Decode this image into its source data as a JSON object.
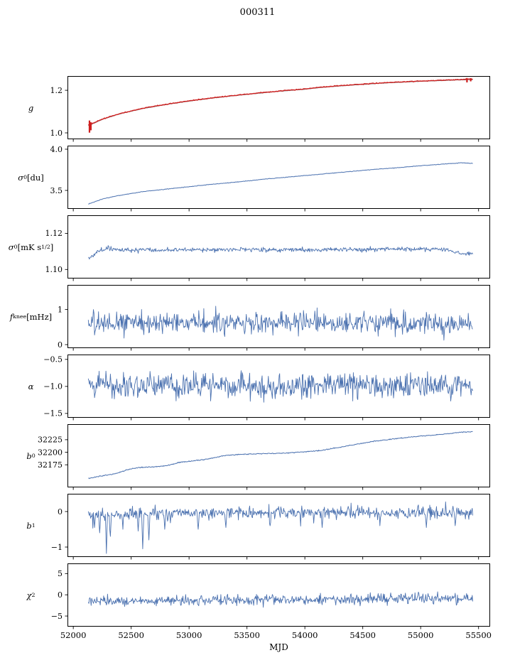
{
  "title": "000311",
  "colors": {
    "series_blue": "#4c72b0",
    "data_red": "#cf1f1f",
    "fit_gray": "#8a8a8a",
    "axis": "#000000",
    "background": "#ffffff"
  },
  "chart_data": {
    "type": "line",
    "title": "000311",
    "xlabel": "MJD",
    "legend": "none",
    "grid": false,
    "xlim": [
      51950,
      55600
    ],
    "xticks": [
      52000,
      52500,
      53000,
      53500,
      54000,
      54500,
      55000,
      55500
    ],
    "xtick_labels": [
      "52000",
      "52500",
      "53000",
      "53500",
      "54000",
      "54500",
      "55000",
      "55500"
    ],
    "data_xrange": [
      52130,
      55450
    ],
    "panels": [
      {
        "id": "g",
        "ylabel": "*g*",
        "ylim": [
          0.97,
          1.267
        ],
        "yticks": [
          1.0,
          1.2
        ],
        "ytick_labels": [
          "1.0",
          "1.2"
        ],
        "series": [
          {
            "name": "fit",
            "color": "#8a8a8a",
            "width": 1.1,
            "seed": 101,
            "points": 500,
            "noise": 0.0008,
            "anchors": [
              [
                52130,
                1.034
              ],
              [
                52250,
                1.063
              ],
              [
                52400,
                1.089
              ],
              [
                52600,
                1.114
              ],
              [
                52800,
                1.133
              ],
              [
                53000,
                1.149
              ],
              [
                53200,
                1.163
              ],
              [
                53400,
                1.175
              ],
              [
                53600,
                1.186
              ],
              [
                53800,
                1.196
              ],
              [
                54000,
                1.205
              ],
              [
                54200,
                1.216
              ],
              [
                54400,
                1.224
              ],
              [
                54600,
                1.231
              ],
              [
                54800,
                1.237
              ],
              [
                55000,
                1.242
              ],
              [
                55200,
                1.246
              ],
              [
                55350,
                1.249
              ],
              [
                55450,
                1.25
              ]
            ]
          },
          {
            "name": "data",
            "color": "#cf1f1f",
            "width": 1.4,
            "seed": 102,
            "points": 500,
            "noise": 0.0016,
            "yoffset": 0.0015,
            "anchors": [
              [
                52130,
                1.034
              ],
              [
                52250,
                1.063
              ],
              [
                52400,
                1.089
              ],
              [
                52600,
                1.114
              ],
              [
                52800,
                1.133
              ],
              [
                53000,
                1.149
              ],
              [
                53200,
                1.163
              ],
              [
                53400,
                1.175
              ],
              [
                53600,
                1.186
              ],
              [
                53800,
                1.196
              ],
              [
                54000,
                1.205
              ],
              [
                54200,
                1.216
              ],
              [
                54400,
                1.224
              ],
              [
                54600,
                1.231
              ],
              [
                54800,
                1.237
              ],
              [
                55000,
                1.242
              ],
              [
                55200,
                1.246
              ],
              [
                55350,
                1.249
              ],
              [
                55450,
                1.251
              ]
            ],
            "errorbars": [
              {
                "x": 52140,
                "ylo": 1.001,
                "yhi": 1.058
              },
              {
                "x": 52152,
                "ylo": 1.012,
                "yhi": 1.05
              },
              {
                "x": 55400,
                "ylo": 1.237,
                "yhi": 1.258
              },
              {
                "x": 55432,
                "ylo": 1.242,
                "yhi": 1.257
              }
            ]
          }
        ]
      },
      {
        "id": "sigma0-du",
        "ylabel": "*σ*_{0} [du]",
        "ylim": [
          3.276,
          4.043
        ],
        "yticks": [
          3.5,
          4.0
        ],
        "ytick_labels": [
          "3.5",
          "4.0"
        ],
        "series": [
          {
            "name": "sigma0_du",
            "color": "#4c72b0",
            "width": 1.0,
            "seed": 201,
            "points": 600,
            "noise": 0.003,
            "anchors": [
              [
                52130,
                3.335
              ],
              [
                52250,
                3.395
              ],
              [
                52400,
                3.44
              ],
              [
                52600,
                3.485
              ],
              [
                52800,
                3.515
              ],
              [
                53000,
                3.545
              ],
              [
                53200,
                3.575
              ],
              [
                53400,
                3.6
              ],
              [
                53600,
                3.63
              ],
              [
                53800,
                3.655
              ],
              [
                54000,
                3.68
              ],
              [
                54200,
                3.705
              ],
              [
                54400,
                3.73
              ],
              [
                54600,
                3.755
              ],
              [
                54800,
                3.775
              ],
              [
                55000,
                3.8
              ],
              [
                55200,
                3.82
              ],
              [
                55350,
                3.835
              ],
              [
                55450,
                3.828
              ]
            ]
          }
        ]
      },
      {
        "id": "sigma0-mks",
        "ylabel": "*σ*_{0} [mK s^{1/2}]",
        "ylim": [
          1.095,
          1.13
        ],
        "yticks": [
          1.1,
          1.12
        ],
        "ytick_labels": [
          "1.10",
          "1.12"
        ],
        "series": [
          {
            "name": "sigma0_mks",
            "color": "#4c72b0",
            "width": 0.9,
            "seed": 301,
            "points": 680,
            "noise": 0.001,
            "burst": {
              "prob": 0.05,
              "amp": 0.0015
            },
            "anchors": [
              [
                52130,
                1.1063
              ],
              [
                52170,
                1.1075
              ],
              [
                52210,
                1.1102
              ],
              [
                52260,
                1.111
              ],
              [
                52320,
                1.1118
              ],
              [
                52400,
                1.1108
              ],
              [
                52500,
                1.1105
              ],
              [
                52600,
                1.1112
              ],
              [
                52700,
                1.1105
              ],
              [
                52850,
                1.111
              ],
              [
                53000,
                1.1108
              ],
              [
                53150,
                1.1112
              ],
              [
                53300,
                1.1108
              ],
              [
                53500,
                1.111
              ],
              [
                53700,
                1.1107
              ],
              [
                53900,
                1.111
              ],
              [
                54100,
                1.1108
              ],
              [
                54300,
                1.1112
              ],
              [
                54500,
                1.111
              ],
              [
                54700,
                1.1113
              ],
              [
                54900,
                1.1115
              ],
              [
                55050,
                1.111
              ],
              [
                55200,
                1.1112
              ],
              [
                55300,
                1.1095
              ],
              [
                55380,
                1.1085
              ],
              [
                55450,
                1.109
              ]
            ]
          }
        ]
      },
      {
        "id": "fknee",
        "ylabel": "*f*_{knee} [mHz]",
        "ylim": [
          -0.1,
          1.7
        ],
        "yticks": [
          0,
          1
        ],
        "ytick_labels": [
          "0",
          "1"
        ],
        "series": [
          {
            "name": "fknee",
            "color": "#4c72b0",
            "width": 0.9,
            "seed": 401,
            "points": 680,
            "noise": 0.24,
            "burst": {
              "prob": 0.06,
              "amp": 0.35
            },
            "anchors": [
              [
                52130,
                0.6
              ],
              [
                53500,
                0.63
              ],
              [
                55450,
                0.62
              ]
            ]
          }
        ]
      },
      {
        "id": "alpha",
        "ylabel": "*α*",
        "ylim": [
          -1.58,
          -0.41
        ],
        "yticks": [
          -1.5,
          -1.0,
          -0.5
        ],
        "ytick_labels": [
          "−1.5",
          "−1.0",
          "−0.5"
        ],
        "series": [
          {
            "name": "alpha",
            "color": "#4c72b0",
            "width": 0.9,
            "seed": 501,
            "points": 680,
            "noise": 0.19,
            "burst": {
              "prob": 0.06,
              "amp": 0.25
            },
            "anchors": [
              [
                52130,
                -1.0
              ],
              [
                53500,
                -1.0
              ],
              [
                55450,
                -0.99
              ]
            ]
          }
        ]
      },
      {
        "id": "b0",
        "ylabel": "*b*_{0}",
        "ylim": [
          32130,
          32256
        ],
        "yticks": [
          32175,
          32200,
          32225
        ],
        "ytick_labels": [
          "32175",
          "32200",
          "32225"
        ],
        "series": [
          {
            "name": "b0",
            "color": "#4c72b0",
            "width": 1.0,
            "seed": 601,
            "points": 680,
            "noise": 0.8,
            "anchors": [
              [
                52130,
                32148
              ],
              [
                52250,
                32153
              ],
              [
                52380,
                32158
              ],
              [
                52450,
                32164
              ],
              [
                52550,
                32169
              ],
              [
                52700,
                32171
              ],
              [
                52800,
                32173
              ],
              [
                52900,
                32179
              ],
              [
                53000,
                32182
              ],
              [
                53150,
                32186
              ],
              [
                53300,
                32193
              ],
              [
                53450,
                32196
              ],
              [
                53600,
                32197
              ],
              [
                53800,
                32198
              ],
              [
                54000,
                32201
              ],
              [
                54150,
                32204
              ],
              [
                54300,
                32210
              ],
              [
                54450,
                32216
              ],
              [
                54600,
                32222
              ],
              [
                54750,
                32226
              ],
              [
                54900,
                32230
              ],
              [
                55050,
                32233
              ],
              [
                55200,
                32236
              ],
              [
                55350,
                32240
              ],
              [
                55450,
                32241
              ]
            ]
          }
        ]
      },
      {
        "id": "b1",
        "ylabel": "*b*_{1}",
        "ylim": [
          -1.28,
          0.5
        ],
        "yticks": [
          -1,
          0
        ],
        "ytick_labels": [
          "−1",
          "0"
        ],
        "series": [
          {
            "name": "b1",
            "color": "#4c72b0",
            "width": 0.9,
            "seed": 701,
            "points": 680,
            "noise": 0.13,
            "burst": {
              "prob": 0.05,
              "amp": 0.3
            },
            "spikes": [
              [
                52185,
                -0.45
              ],
              [
                52230,
                -0.6
              ],
              [
                52285,
                -1.18
              ],
              [
                52320,
                -0.7
              ],
              [
                52430,
                -0.5
              ],
              [
                52560,
                -0.55
              ],
              [
                52600,
                -1.05
              ],
              [
                52655,
                -0.8
              ],
              [
                52790,
                -0.5
              ],
              [
                53080,
                -0.5
              ],
              [
                53320,
                -0.45
              ],
              [
                53700,
                -0.4
              ],
              [
                54150,
                -0.45
              ],
              [
                54650,
                -0.4
              ],
              [
                55050,
                -0.45
              ],
              [
                55300,
                -0.4
              ]
            ],
            "anchors": [
              [
                52130,
                -0.08
              ],
              [
                52800,
                -0.05
              ],
              [
                55450,
                -0.02
              ]
            ]
          }
        ]
      },
      {
        "id": "chi2",
        "ylabel": "*χ*^{2}",
        "ylim": [
          -7.5,
          7.4
        ],
        "yticks": [
          -5,
          0,
          5
        ],
        "ytick_labels": [
          "−5",
          "0",
          "5"
        ],
        "series": [
          {
            "name": "chi2",
            "color": "#4c72b0",
            "width": 0.9,
            "seed": 801,
            "points": 680,
            "noise": 1.0,
            "burst": {
              "prob": 0.05,
              "amp": 1.2
            },
            "anchors": [
              [
                52130,
                -1.5
              ],
              [
                52400,
                -1.6
              ],
              [
                52700,
                -1.4
              ],
              [
                53000,
                -1.3
              ],
              [
                53500,
                -1.2
              ],
              [
                54000,
                -1.1
              ],
              [
                54500,
                -1.0
              ],
              [
                55000,
                -0.9
              ],
              [
                55450,
                -1.0
              ]
            ]
          }
        ]
      }
    ]
  }
}
